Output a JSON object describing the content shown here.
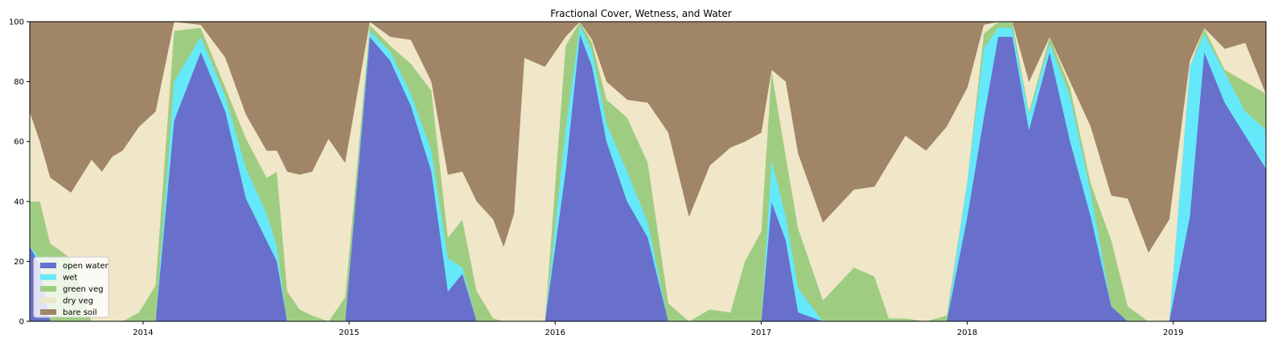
{
  "chart_data": {
    "type": "area",
    "title": "Fractional Cover, Wetness, and Water",
    "xlabel": "",
    "ylabel": "",
    "ylim": [
      0,
      100
    ],
    "xlim": [
      2013.45,
      2019.45
    ],
    "grid": false,
    "stacked": true,
    "legend_position": "bottom-left",
    "x_ticks": [
      2014,
      2015,
      2016,
      2017,
      2018,
      2019
    ],
    "y_ticks": [
      0,
      20,
      40,
      60,
      80,
      100
    ],
    "x": [
      2013.45,
      2013.5,
      2013.55,
      2013.65,
      2013.75,
      2013.8,
      2013.85,
      2013.9,
      2013.98,
      2014.06,
      2014.15,
      2014.28,
      2014.4,
      2014.5,
      2014.6,
      2014.65,
      2014.7,
      2014.76,
      2014.82,
      2014.9,
      2014.98,
      2015.1,
      2015.2,
      2015.3,
      2015.4,
      2015.48,
      2015.55,
      2015.62,
      2015.7,
      2015.75,
      2015.8,
      2015.85,
      2015.95,
      2016.05,
      2016.12,
      2016.18,
      2016.25,
      2016.35,
      2016.45,
      2016.55,
      2016.65,
      2016.75,
      2016.85,
      2016.92,
      2017.0,
      2017.05,
      2017.12,
      2017.18,
      2017.3,
      2017.45,
      2017.55,
      2017.62,
      2017.7,
      2017.8,
      2017.9,
      2018.0,
      2018.08,
      2018.15,
      2018.22,
      2018.3,
      2018.4,
      2018.5,
      2018.6,
      2018.7,
      2018.78,
      2018.88,
      2018.98,
      2019.08,
      2019.15,
      2019.25,
      2019.35,
      2019.45
    ],
    "series": [
      {
        "name": "open water",
        "color": "#6870cb",
        "values": [
          25,
          19,
          0,
          0,
          0,
          0,
          0,
          0,
          0,
          0,
          67,
          90,
          70,
          41,
          27,
          20,
          0,
          0,
          0,
          0,
          0,
          95,
          87,
          72,
          50,
          10,
          16,
          0,
          0,
          0,
          0,
          0,
          0,
          50,
          96,
          85,
          60,
          40,
          28,
          0,
          0,
          0,
          0,
          0,
          0,
          40,
          27,
          3,
          0,
          0,
          0,
          0,
          0,
          0,
          0,
          35,
          68,
          95,
          95,
          64,
          90,
          60,
          35,
          5,
          0,
          0,
          0,
          35,
          90,
          73,
          62,
          51
        ]
      },
      {
        "name": "wet",
        "color": "#66e8fb",
        "values": [
          0,
          2,
          0,
          0,
          0,
          0,
          0,
          0,
          0,
          0,
          13,
          5,
          5,
          10,
          9,
          5,
          0,
          0,
          0,
          0,
          0,
          2,
          3,
          4,
          7,
          11,
          2,
          0,
          0,
          0,
          0,
          0,
          0,
          14,
          3,
          5,
          6,
          10,
          5,
          0,
          0,
          0,
          0,
          0,
          0,
          14,
          8,
          8,
          0,
          0,
          0,
          0,
          0,
          0,
          0,
          12,
          23,
          3,
          3,
          5,
          3,
          15,
          8,
          0,
          0,
          0,
          0,
          50,
          6,
          10,
          8,
          13
        ]
      },
      {
        "name": "green veg",
        "color": "#9ecd82",
        "values": [
          15,
          19,
          26,
          21,
          0,
          0,
          0,
          0,
          3,
          12,
          17,
          3,
          3,
          10,
          12,
          25,
          10,
          4,
          2,
          0,
          8,
          2,
          2,
          10,
          20,
          7,
          16,
          10,
          1,
          0,
          0,
          0,
          0,
          28,
          1,
          3,
          8,
          18,
          20,
          6,
          0,
          4,
          3,
          20,
          30,
          30,
          20,
          20,
          7,
          18,
          15,
          1,
          1,
          0,
          2,
          0,
          5,
          2,
          2,
          1,
          2,
          3,
          3,
          22,
          5,
          0,
          0,
          0,
          2,
          1,
          10,
          12
        ]
      },
      {
        "name": "dry veg",
        "color": "#f0e6c8",
        "values": [
          30,
          20,
          22,
          22,
          54,
          50,
          55,
          57,
          62,
          58,
          3,
          1,
          10,
          8,
          9,
          7,
          40,
          45,
          48,
          61,
          45,
          1,
          3,
          8,
          3,
          21,
          16,
          30,
          33,
          25,
          36,
          88,
          85,
          3,
          0,
          1,
          6,
          6,
          20,
          57,
          35,
          48,
          55,
          40,
          33,
          0,
          25,
          25,
          26,
          26,
          30,
          52,
          61,
          57,
          63,
          31,
          3,
          0,
          0,
          10,
          0,
          2,
          19,
          15,
          36,
          23,
          34,
          2,
          0,
          7,
          13,
          0
        ]
      },
      {
        "name": "bare soil",
        "color": "#a08566",
        "values": [
          30,
          40,
          52,
          57,
          46,
          50,
          45,
          43,
          35,
          30,
          0,
          1,
          12,
          31,
          43,
          43,
          50,
          51,
          50,
          39,
          47,
          0,
          5,
          6,
          20,
          51,
          50,
          60,
          66,
          75,
          64,
          12,
          15,
          5,
          0,
          6,
          20,
          26,
          27,
          37,
          65,
          48,
          42,
          40,
          37,
          16,
          20,
          44,
          67,
          56,
          55,
          47,
          38,
          43,
          35,
          22,
          1,
          0,
          0,
          20,
          5,
          20,
          35,
          58,
          59,
          77,
          66,
          13,
          2,
          9,
          7,
          24
        ]
      }
    ]
  }
}
